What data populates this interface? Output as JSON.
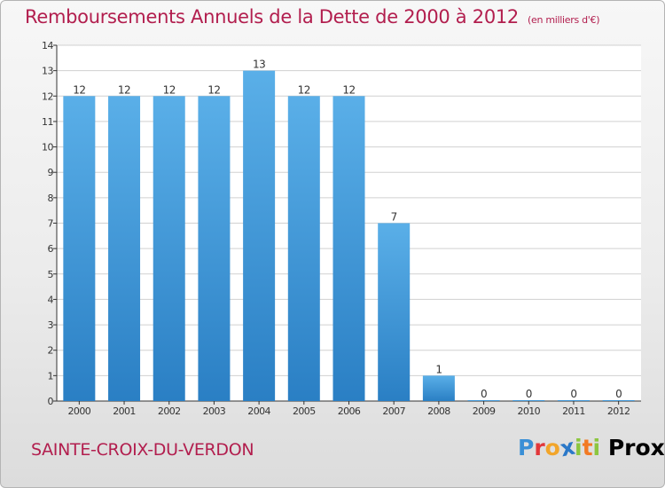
{
  "header": {
    "title": "Remboursements Annuels de la Dette de 2000 à 2012",
    "subtitle": "(en milliers d'€)"
  },
  "footer": {
    "commune": "SAINTE-CROIX-DU-VERDON",
    "logo_text": "Proxiti",
    "logo_letters": [
      {
        "ch": "P",
        "color": "#3a8fd6"
      },
      {
        "ch": "r",
        "color": "#e2373a"
      },
      {
        "ch": "o",
        "color": "#f2a52a"
      },
      {
        "ch": "x",
        "color": "#2a78c8"
      },
      {
        "ch": "i",
        "color": "#8cc63f"
      },
      {
        "ch": "t",
        "color": "#f27a24"
      },
      {
        "ch": "i",
        "color": "#8cc63f"
      }
    ]
  },
  "colors": {
    "title": "#b21e4e",
    "bar_top": "#5aafe8",
    "bar_bottom": "#2a7fc4",
    "grid": "#d0d0d0",
    "axis": "#333333"
  },
  "chart_data": {
    "type": "bar",
    "categories": [
      "2000",
      "2001",
      "2002",
      "2003",
      "2004",
      "2005",
      "2006",
      "2007",
      "2008",
      "2009",
      "2010",
      "2011",
      "2012"
    ],
    "values": [
      12,
      12,
      12,
      12,
      13,
      12,
      12,
      7,
      1,
      0,
      0,
      0,
      0
    ],
    "ylim": [
      0,
      14
    ],
    "yticks": [
      0,
      1,
      2,
      3,
      4,
      5,
      6,
      7,
      8,
      9,
      10,
      11,
      12,
      13,
      14
    ],
    "grid": true,
    "title": "Remboursements Annuels de la Dette de 2000 à 2012",
    "xlabel": "",
    "ylabel": ""
  }
}
